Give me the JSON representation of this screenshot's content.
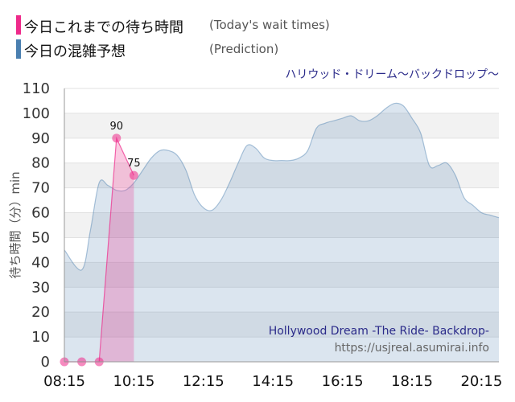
{
  "legend": {
    "today": {
      "label_jp": "今日これまでの待ち時間",
      "label_en": "(Today's wait times)",
      "color": "#ee2a8a"
    },
    "prediction": {
      "label_jp": "今日の混雑予想",
      "label_en": "(Prediction)",
      "color": "#4a7fb0"
    }
  },
  "chart_title": "ハリウッド・ドリーム〜バックドロップ〜",
  "watermark": {
    "ride_name": "Hollywood Dream -The Ride- Backdrop-",
    "url": "https://usjreal.asumirai.info"
  },
  "chart_data": {
    "type": "area",
    "xlabel": "",
    "ylabel": "待ち時間（分）min",
    "ylim": [
      0,
      110
    ],
    "yticks": [
      0,
      10,
      20,
      30,
      40,
      50,
      60,
      70,
      80,
      90,
      100,
      110
    ],
    "xlim": [
      "08:15",
      "20:45"
    ],
    "xticks": [
      "08:15",
      "10:15",
      "12:15",
      "14:15",
      "16:15",
      "18:15",
      "20:15"
    ],
    "grid": "horizontal bands",
    "series": [
      {
        "role": "prediction",
        "color": "#4a7fb0",
        "x": [
          "08:15",
          "08:45",
          "09:00",
          "09:15",
          "09:30",
          "09:45",
          "10:00",
          "10:15",
          "10:30",
          "10:45",
          "11:00",
          "11:15",
          "11:30",
          "11:45",
          "12:00",
          "12:15",
          "12:30",
          "12:45",
          "13:00",
          "13:15",
          "13:30",
          "13:45",
          "14:00",
          "14:15",
          "14:30",
          "14:45",
          "15:00",
          "15:15",
          "15:30",
          "15:45",
          "16:00",
          "16:15",
          "16:30",
          "16:45",
          "17:00",
          "17:15",
          "17:30",
          "17:45",
          "18:00",
          "18:15",
          "18:30",
          "18:45",
          "19:00",
          "19:15",
          "19:30",
          "19:45",
          "20:00",
          "20:15",
          "20:30",
          "20:45"
        ],
        "values": [
          45,
          37,
          53,
          72,
          71,
          69,
          69,
          72,
          77,
          82,
          85,
          85,
          83,
          77,
          67,
          62,
          61,
          65,
          72,
          80,
          87,
          86,
          82,
          81,
          81,
          81,
          82,
          85,
          94,
          96,
          97,
          98,
          99,
          97,
          97,
          99,
          102,
          104,
          103,
          98,
          92,
          79,
          79,
          80,
          75,
          66,
          63,
          60,
          59,
          58
        ]
      },
      {
        "role": "today",
        "color": "#ee2a8a",
        "x": [
          "08:15",
          "08:45",
          "09:15",
          "09:45",
          "10:15"
        ],
        "values": [
          0,
          0,
          0,
          90,
          75
        ],
        "labeled_points": [
          {
            "x": "09:45",
            "value": 90
          },
          {
            "x": "10:15",
            "value": 75
          }
        ]
      }
    ]
  }
}
